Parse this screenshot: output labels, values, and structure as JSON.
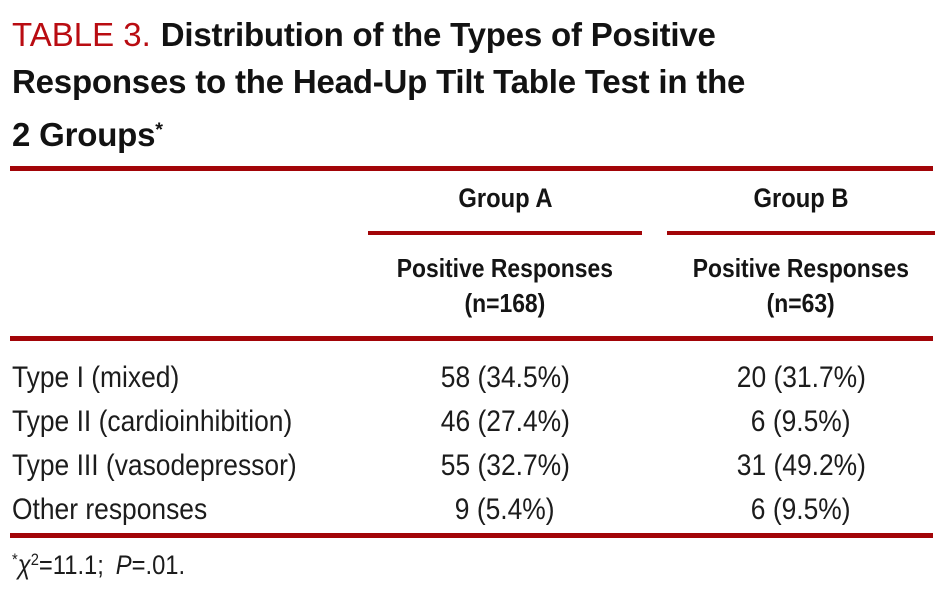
{
  "colors": {
    "title_red": "#B90C12",
    "rule_red": "#A20508",
    "ink": "#1b1b1b"
  },
  "title": {
    "label": "TABLE 3.",
    "line1": "Distribution of the Types of Positive",
    "line2": "Responses to the Head-Up Tilt Table Test in the",
    "line3": "2 Groups",
    "footnote_marker": "*"
  },
  "table": {
    "columns": [
      {
        "group": "Group A",
        "subtitle_line1": "Positive Responses",
        "subtitle_line2": "(n=168)"
      },
      {
        "group": "Group B",
        "subtitle_line1": "Positive Responses",
        "subtitle_line2": "(n=63)"
      }
    ],
    "rows": [
      {
        "label": "Type I (mixed)",
        "group_a": "58 (34.5%)",
        "group_b": "20 (31.7%)"
      },
      {
        "label": "Type II (cardioinhibition)",
        "group_a": "46 (27.4%)",
        "group_b": "6 (9.5%)"
      },
      {
        "label": "Type III (vasodepressor)",
        "group_a": "55 (32.7%)",
        "group_b": "31 (49.2%)"
      },
      {
        "label": "Other responses",
        "group_a": "9 (5.4%)",
        "group_b": "6 (9.5%)"
      }
    ]
  },
  "footnote": {
    "asterisk": "*",
    "chi": "χ",
    "exponent": "2",
    "chi_value": "=11.1; ",
    "p_label": "P",
    "p_value": "=.01."
  }
}
